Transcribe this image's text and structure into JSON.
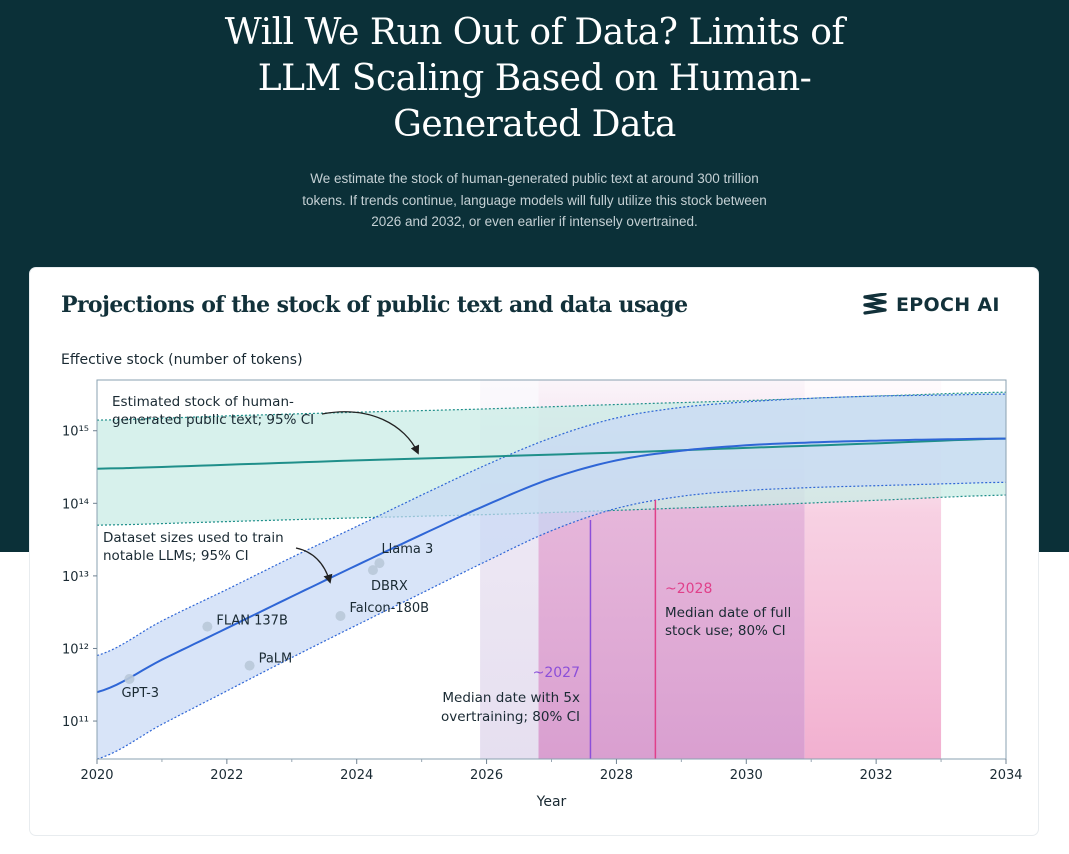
{
  "header": {
    "title": "Will We Run Out of Data? Limits of LLM Scaling Based on Human-Generated Data",
    "subtitle": "We estimate the stock of human-generated public text at around 300 trillion tokens. If trends continue, language models will fully utilize this stock between 2026 and 2032, or even earlier if intensely overtrained."
  },
  "card": {
    "title": "Projections of the stock of public text and data usage",
    "logo_text": "EPOCH AI",
    "logo_icon": "epoch-stripes-icon"
  },
  "chart_data": {
    "type": "line",
    "title": "Projections of the stock of public text and data usage",
    "ylabel": "Effective stock (number of tokens)",
    "xlabel": "Year",
    "x_ticks": [
      2020,
      2022,
      2024,
      2026,
      2028,
      2030,
      2032,
      2034
    ],
    "y_ticks": [
      {
        "label": "10¹¹",
        "value": 100000000000.0
      },
      {
        "label": "10¹²",
        "value": 1000000000000.0
      },
      {
        "label": "10¹³",
        "value": 10000000000000.0
      },
      {
        "label": "10¹⁴",
        "value": 100000000000000.0
      },
      {
        "label": "10¹⁵",
        "value": 1000000000000000.0
      }
    ],
    "y_scale": "log",
    "xlim": [
      2020,
      2034
    ],
    "ylim": [
      30000000000.0,
      5000000000000000.0
    ],
    "grid": "none",
    "colors": {
      "stock": "#1f8f8a",
      "stock_band": "#c9ece6",
      "usage": "#2f66d6",
      "usage_band": "#c7d8f5",
      "overtrain_band": "#e6dff0",
      "overtrain_band_core": "#dcb0d8",
      "full_use_band": "#f3b8d4",
      "overtrain_accent": "#8b4fd9",
      "full_use_accent": "#e0408a"
    },
    "series": [
      {
        "name": "stock",
        "x": [
          2020,
          2022,
          2024,
          2026,
          2028,
          2030,
          2032,
          2034
        ],
        "y": [
          300000000000000.0,
          340000000000000.0,
          390000000000000.0,
          440000000000000.0,
          500000000000000.0,
          580000000000000.0,
          670000000000000.0,
          780000000000000.0
        ],
        "lower": [
          50000000000000.0,
          56000000000000.0,
          63000000000000.0,
          70000000000000.0,
          80000000000000.0,
          93000000000000.0,
          110000000000000.0,
          130000000000000.0
        ],
        "upper": [
          1400000000000000.0,
          1600000000000000.0,
          1800000000000000.0,
          2000000000000000.0,
          2300000000000000.0,
          2600000000000000.0,
          3000000000000000.0,
          3400000000000000.0
        ]
      },
      {
        "name": "usage",
        "x": [
          2020,
          2021,
          2022,
          2023,
          2024,
          2025,
          2026,
          2027,
          2028,
          2029,
          2030,
          2031,
          2032,
          2033,
          2034
        ],
        "y": [
          250000000000.0,
          700000000000.0,
          1900000000000.0,
          5200000000000.0,
          14000000000000.0,
          37000000000000.0,
          95000000000000.0,
          220000000000000.0,
          390000000000000.0,
          530000000000000.0,
          630000000000000.0,
          690000000000000.0,
          730000000000000.0,
          760000000000000.0,
          780000000000000.0
        ],
        "lower": [
          30000000000.0,
          90000000000.0,
          260000000000.0,
          750000000000.0,
          2100000000000.0,
          5800000000000.0,
          16000000000000.0,
          42000000000000.0,
          85000000000000.0,
          125000000000000.0,
          150000000000000.0,
          165000000000000.0,
          175000000000000.0,
          185000000000000.0,
          195000000000000.0
        ],
        "upper": [
          800000000000.0,
          2400000000000.0,
          6500000000000.0,
          18000000000000.0,
          48000000000000.0,
          130000000000000.0,
          340000000000000.0,
          800000000000000.0,
          1500000000000000.0,
          2100000000000000.0,
          2500000000000000.0,
          2800000000000000.0,
          3000000000000000.0,
          3100000000000000.0,
          3200000000000000.0
        ]
      }
    ],
    "models": [
      {
        "name": "GPT-3",
        "x": 2020.5,
        "y": 380000000000.0
      },
      {
        "name": "FLAN 137B",
        "x": 2021.7,
        "y": 2000000000000.0
      },
      {
        "name": "PaLM",
        "x": 2022.35,
        "y": 580000000000.0
      },
      {
        "name": "Falcon-180B",
        "x": 2023.75,
        "y": 2800000000000.0
      },
      {
        "name": "DBRX",
        "x": 2024.25,
        "y": 12000000000000.0
      },
      {
        "name": "Llama 3",
        "x": 2024.35,
        "y": 15000000000000.0
      }
    ],
    "regions": [
      {
        "name": "overtrain",
        "x_outer": [
          2025.9,
          2030.9
        ],
        "x_inner": [
          2026.8,
          2030.9
        ],
        "median": 2027.6
      },
      {
        "name": "full_use",
        "x_outer": [
          2030.9,
          2033.0
        ],
        "x_inner": [
          2026.8,
          2030.9
        ],
        "median": 2028.6
      }
    ],
    "annotations": {
      "stock_line1": "Estimated stock of human-",
      "stock_line2": "generated public text; 95% CI",
      "usage_line1": "Dataset sizes used to train",
      "usage_line2": "notable LLMs; 95% CI",
      "overtrain_year": "~2027",
      "overtrain_line1": "Median date with 5x",
      "overtrain_line2": "overtraining; 80% CI",
      "full_year": "~2028",
      "full_line1": "Median date of full",
      "full_line2": "stock use; 80% CI"
    }
  }
}
